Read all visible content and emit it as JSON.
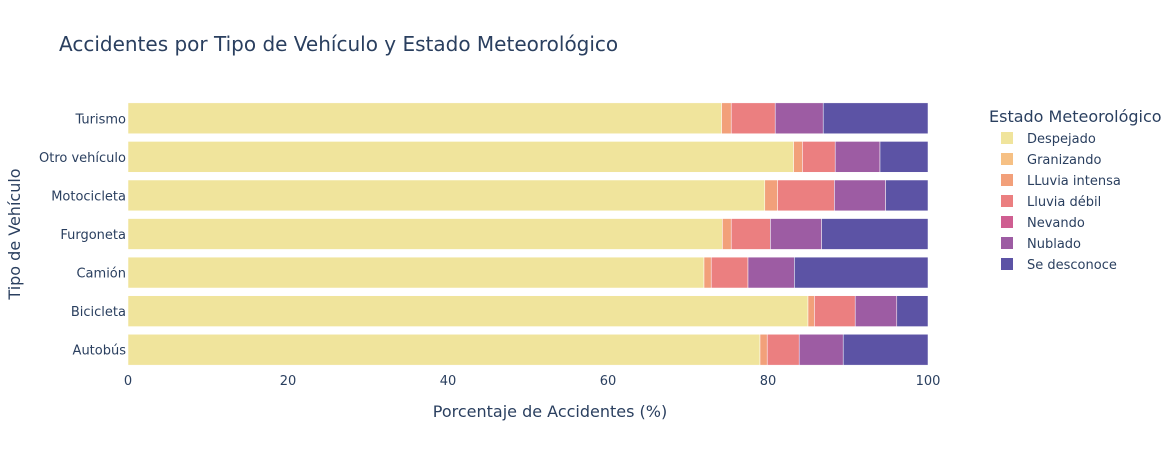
{
  "chart_data": {
    "type": "bar",
    "orientation": "horizontal",
    "stacked": true,
    "title": "Accidentes por Tipo de Vehículo y Estado Meteorológico",
    "xlabel": "Porcentaje de Accidentes (%)",
    "ylabel": "Tipo de Vehículo",
    "xlim": [
      0,
      100
    ],
    "xticks": [
      "0",
      "20",
      "40",
      "60",
      "80",
      "100"
    ],
    "grid": false,
    "legend_title": "Estado Meteorológico",
    "legend_position": "right",
    "categories": [
      "Autobús",
      "Bicicleta",
      "Camión",
      "Furgoneta",
      "Motocicleta",
      "Otro vehículo",
      "Turismo"
    ],
    "series": [
      {
        "name": "Despejado",
        "color": "#f0e49c",
        "values": [
          79.0,
          85.0,
          72.0,
          74.3,
          79.6,
          83.2,
          74.2
        ]
      },
      {
        "name": "Granizando",
        "color": "#f6c084",
        "values": [
          0.0,
          0.0,
          0.0,
          0.0,
          0.0,
          0.0,
          0.0
        ]
      },
      {
        "name": "LLuvia intensa",
        "color": "#f2a07a",
        "values": [
          0.9,
          0.8,
          0.9,
          1.1,
          1.6,
          1.1,
          1.2
        ]
      },
      {
        "name": "Lluvia débil",
        "color": "#eb7f80",
        "values": [
          4.0,
          5.1,
          4.6,
          4.9,
          7.1,
          4.1,
          5.5
        ]
      },
      {
        "name": "Nevando",
        "color": "#cf5e91",
        "values": [
          0.0,
          0.0,
          0.0,
          0.0,
          0.0,
          0.0,
          0.0
        ]
      },
      {
        "name": "Nublado",
        "color": "#9d5ca3",
        "values": [
          5.5,
          5.2,
          5.8,
          6.4,
          6.4,
          5.6,
          6.0
        ]
      },
      {
        "name": "Se desconoce",
        "color": "#5c53a5",
        "values": [
          10.6,
          3.9,
          16.7,
          13.3,
          5.3,
          6.0,
          13.1
        ]
      }
    ]
  }
}
